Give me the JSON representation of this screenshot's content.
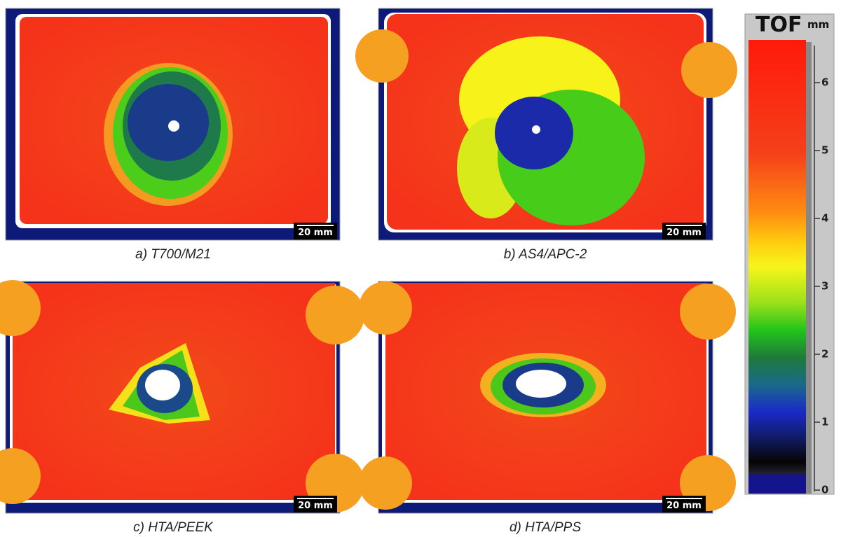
{
  "panels": [
    {
      "caption": "a) T700/M21",
      "scale_bar": "20 mm"
    },
    {
      "caption": "b) AS4/APC-2",
      "scale_bar": "20 mm"
    },
    {
      "caption": "c) HTA/PEEK",
      "scale_bar": "20 mm"
    },
    {
      "caption": "d) HTA/PPS",
      "scale_bar": "20 mm"
    }
  ],
  "colorbar": {
    "title": "TOF",
    "unit": "mm",
    "ticks": [
      0,
      1,
      2,
      3,
      4,
      5,
      6
    ]
  }
}
